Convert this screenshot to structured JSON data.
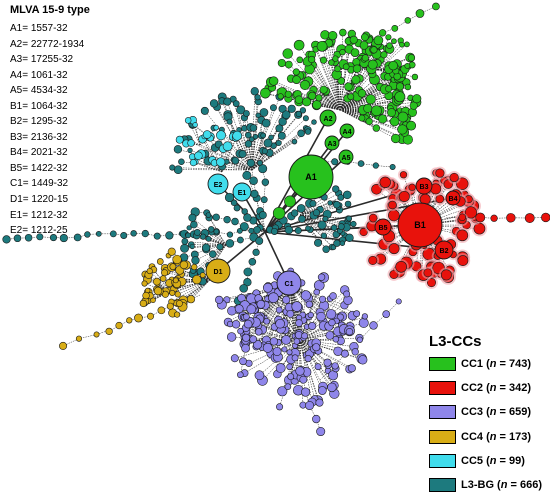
{
  "mlva": {
    "title": "MLVA 15-9 type",
    "entries": [
      "A1= 1557-32",
      "A2= 22772-1934",
      "A3= 17255-32",
      "A4= 1061-32",
      "A5= 4534-32",
      "B1= 1064-32",
      "B2= 1295-32",
      "B3= 2136-32",
      "B4= 2021-32",
      "B5= 1422-32",
      "C1= 1449-32",
      "D1= 1220-15",
      "E1= 1212-32",
      "E2= 1212-25"
    ]
  },
  "legend": {
    "title": "L3-CCs",
    "items": [
      {
        "name": "CC1",
        "n": "743",
        "color": "#27c11d"
      },
      {
        "name": "CC2",
        "n": "342",
        "color": "#e8120c"
      },
      {
        "name": "CC3",
        "n": "659",
        "color": "#8f86ea"
      },
      {
        "name": "CC4",
        "n": "173",
        "color": "#d8ad16"
      },
      {
        "name": "CC5",
        "n": "99",
        "color": "#40dcec"
      },
      {
        "name": "L3-BG",
        "n": "666",
        "color": "#1d7a7e"
      }
    ]
  },
  "nodes": {
    "A1": "A1",
    "A2": "A2",
    "A3": "A3",
    "A4": "A4",
    "A5": "A5",
    "B1": "B1",
    "B2": "B2",
    "B3": "B3",
    "B4": "B4",
    "B5": "B5",
    "C1": "C1",
    "D1": "D1",
    "E1": "E1",
    "E2": "E2"
  }
}
